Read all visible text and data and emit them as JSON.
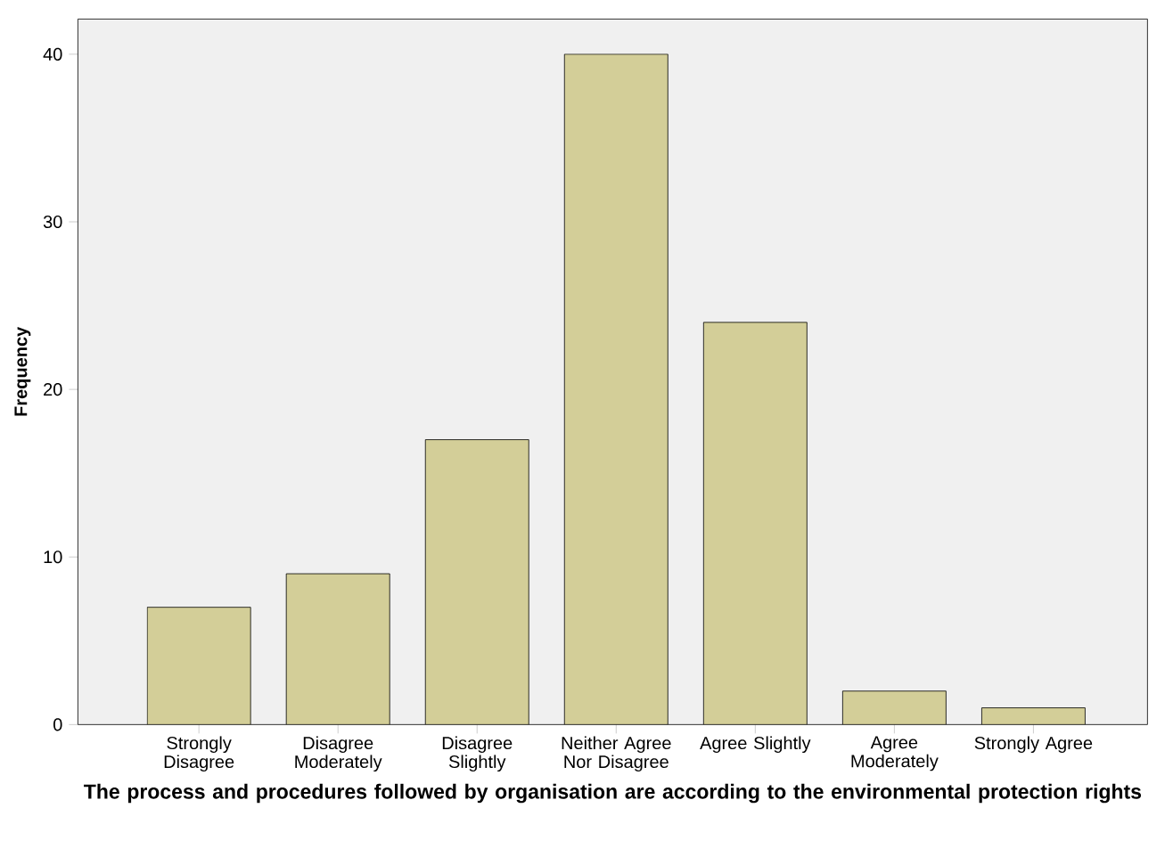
{
  "chart_data": {
    "type": "bar",
    "xlabel": "The process and procedures followed by organisation are according to the environmental  protection rights",
    "ylabel": "Frequency",
    "categories": [
      "Strongly Disagree",
      "Disagree Moderately",
      "Disagree Slightly",
      "Neither Agree Nor Disagree",
      "Agree Slightly",
      "Agree Moderately",
      "Strongly Agree"
    ],
    "values": [
      7,
      9,
      17,
      40,
      24,
      2,
      1
    ],
    "color": "#d3ce98",
    "ylim": [
      0,
      42.1
    ],
    "yticks": [
      0,
      10,
      20,
      30,
      40
    ],
    "grid": false
  }
}
